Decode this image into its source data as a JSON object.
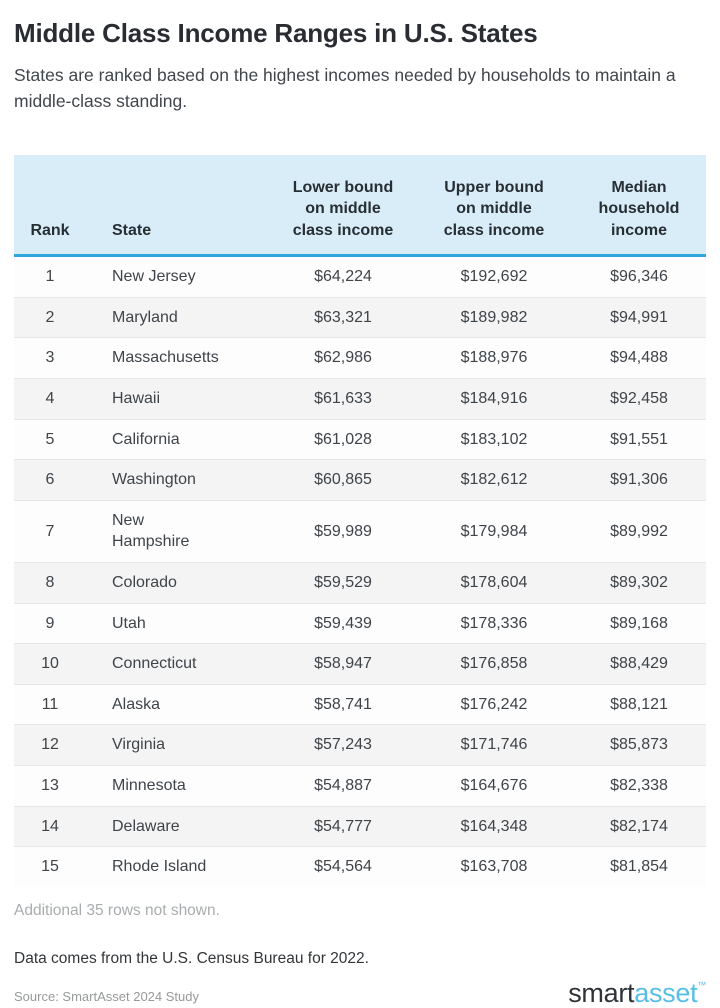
{
  "page": {
    "title": "Middle Class Income Ranges in U.S. States",
    "subtitle": "States are ranked based on the highest incomes needed by households to maintain a middle-class standing.",
    "additional_note": "Additional 35 rows not shown.",
    "data_note": "Data comes from the U.S. Census Bureau for 2022.",
    "source_note": "Source: SmartAsset 2024 Study"
  },
  "logo": {
    "part1": "smart",
    "part2": "asset",
    "tm": "™"
  },
  "colors": {
    "header_bg": "#d9edf8",
    "header_underline": "#2ea7db",
    "row_alt_bg": "#f4f4f4",
    "row_divider": "#e7e7e7",
    "muted_text": "#a9acae",
    "logo_dark": "#2e3338",
    "logo_blue": "#57bee7"
  },
  "chart_data": {
    "type": "table",
    "title": "Middle Class Income Ranges in U.S. States",
    "columns": [
      "Rank",
      "State",
      "Lower bound on middle class income",
      "Upper bound on middle class income",
      "Median household income"
    ],
    "rows": [
      {
        "rank": "1",
        "state": "New Jersey",
        "lower": "$64,224",
        "upper": "$192,692",
        "median": "$96,346"
      },
      {
        "rank": "2",
        "state": "Maryland",
        "lower": "$63,321",
        "upper": "$189,982",
        "median": "$94,991"
      },
      {
        "rank": "3",
        "state": "Massachusetts",
        "lower": "$62,986",
        "upper": "$188,976",
        "median": "$94,488"
      },
      {
        "rank": "4",
        "state": "Hawaii",
        "lower": "$61,633",
        "upper": "$184,916",
        "median": "$92,458"
      },
      {
        "rank": "5",
        "state": "California",
        "lower": "$61,028",
        "upper": "$183,102",
        "median": "$91,551"
      },
      {
        "rank": "6",
        "state": "Washington",
        "lower": "$60,865",
        "upper": "$182,612",
        "median": "$91,306"
      },
      {
        "rank": "7",
        "state": "New Hampshire",
        "lower": "$59,989",
        "upper": "$179,984",
        "median": "$89,992"
      },
      {
        "rank": "8",
        "state": "Colorado",
        "lower": "$59,529",
        "upper": "$178,604",
        "median": "$89,302"
      },
      {
        "rank": "9",
        "state": "Utah",
        "lower": "$59,439",
        "upper": "$178,336",
        "median": "$89,168"
      },
      {
        "rank": "10",
        "state": "Connecticut",
        "lower": "$58,947",
        "upper": "$176,858",
        "median": "$88,429"
      },
      {
        "rank": "11",
        "state": "Alaska",
        "lower": "$58,741",
        "upper": "$176,242",
        "median": "$88,121"
      },
      {
        "rank": "12",
        "state": "Virginia",
        "lower": "$57,243",
        "upper": "$171,746",
        "median": "$85,873"
      },
      {
        "rank": "13",
        "state": "Minnesota",
        "lower": "$54,887",
        "upper": "$164,676",
        "median": "$82,338"
      },
      {
        "rank": "14",
        "state": "Delaware",
        "lower": "$54,777",
        "upper": "$164,348",
        "median": "$82,174"
      },
      {
        "rank": "15",
        "state": "Rhode Island",
        "lower": "$54,564",
        "upper": "$163,708",
        "median": "$81,854"
      }
    ]
  }
}
